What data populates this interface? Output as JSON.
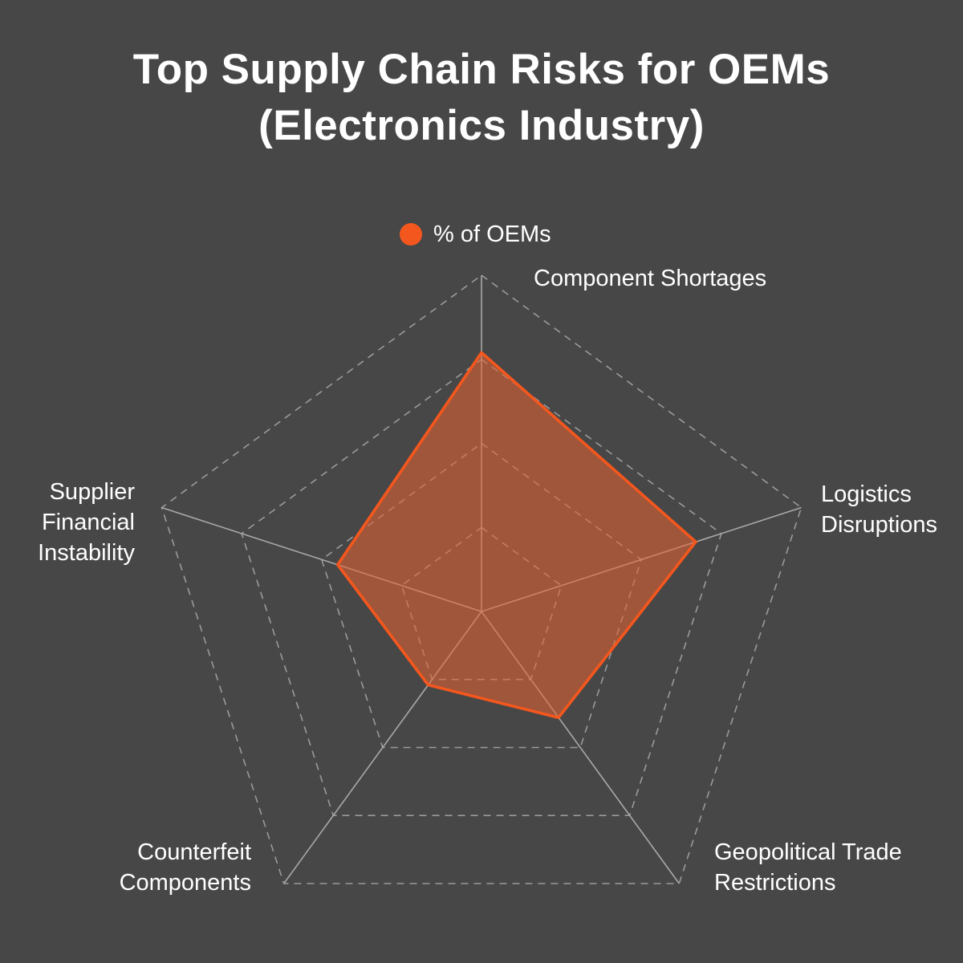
{
  "title": {
    "line1": "Top Supply Chain Risks for OEMs",
    "line2": "(Electronics Industry)"
  },
  "legend": {
    "label": "% of OEMs"
  },
  "colors": {
    "background": "#474747",
    "text": "#FFFFFF",
    "accent": "#F4571E",
    "fill": "#E8622F",
    "grid": "#9A9A9A",
    "spoke": "#A9A9A9"
  },
  "chart_data": {
    "type": "radar",
    "categories": [
      "Component Shortages",
      "Logistics Disruptions",
      "Geopolitical Trade Restrictions",
      "Counterfeit Components",
      "Supplier Financial Instability"
    ],
    "series": [
      {
        "name": "% of OEMs",
        "values": [
          77,
          67,
          39,
          27,
          45
        ]
      }
    ],
    "rlim": [
      0,
      100
    ],
    "ring_values": [
      25,
      50,
      75,
      100
    ],
    "grid": "dashed-rings-solid-spokes",
    "legend_position": "top-center"
  },
  "axis_labels": {
    "component_shortages": {
      "lines": [
        "Component Shortages"
      ]
    },
    "logistics_disruptions": {
      "lines": [
        "Logistics",
        "Disruptions"
      ]
    },
    "geopolitical_trade_restrictions": {
      "lines": [
        "Geopolitical Trade",
        "Restrictions"
      ]
    },
    "counterfeit_components": {
      "lines": [
        "Counterfeit",
        "Components"
      ]
    },
    "supplier_financial_instability": {
      "lines": [
        "Supplier",
        "Financial",
        "Instability"
      ]
    }
  }
}
